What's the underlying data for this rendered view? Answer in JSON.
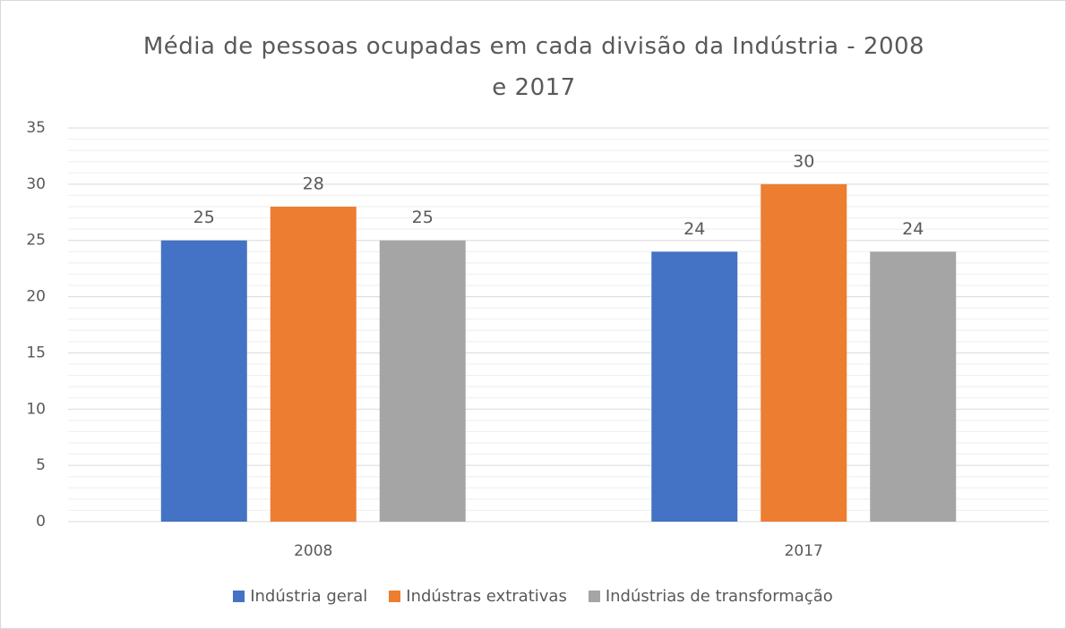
{
  "chart_data": {
    "type": "bar",
    "title": "Média de pessoas ocupadas em cada divisão da Indústria - 2008 e 2017",
    "categories": [
      "2008",
      "2017"
    ],
    "series": [
      {
        "name": "Indústria geral",
        "color": "#4472c4",
        "values": [
          25,
          24
        ]
      },
      {
        "name": "Indústras extrativas",
        "color": "#ed7d31",
        "values": [
          28,
          30
        ]
      },
      {
        "name": "Indústrias de transformação",
        "color": "#a5a5a5",
        "values": [
          25,
          24
        ]
      }
    ],
    "ylim": [
      0,
      35
    ],
    "yticks": [
      0,
      5,
      10,
      15,
      20,
      25,
      30,
      35
    ],
    "grid": true,
    "minor_grid": true,
    "legend": "bottom"
  }
}
